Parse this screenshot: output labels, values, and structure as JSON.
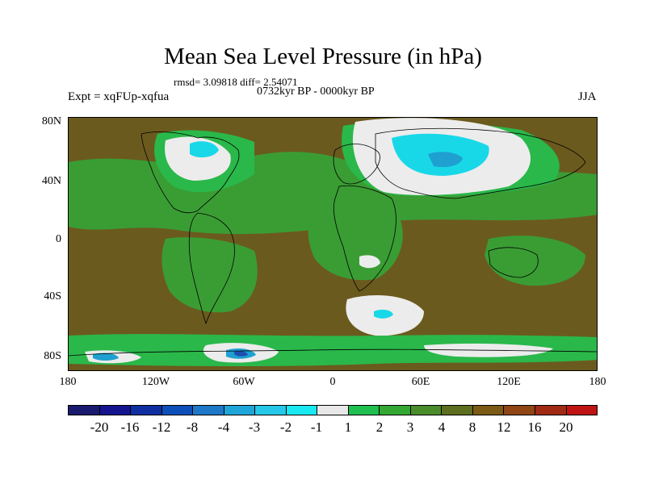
{
  "title": "Mean Sea Level Pressure (in hPa)",
  "stats_line": "rmsd= 3.09818 diff= 2.54071",
  "period": "0732kyr BP - 0000kyr BP",
  "experiment": "Expt = xqFUp-xqfua",
  "season": "JJA",
  "axes": {
    "latitude_labels": [
      "80N",
      "40N",
      "0",
      "40S",
      "80S"
    ],
    "longitude_labels": [
      "180",
      "120W",
      "60W",
      "0",
      "60E",
      "120E",
      "180"
    ]
  },
  "colorbar": {
    "levels": [
      "-20",
      "-16",
      "-12",
      "-8",
      "-4",
      "-3",
      "-2",
      "-1",
      "1",
      "2",
      "3",
      "4",
      "8",
      "12",
      "16",
      "20"
    ],
    "colors": [
      "#1a1a6e",
      "#14148f",
      "#0f2fa0",
      "#0d4fb8",
      "#1e78c8",
      "#1ea6d8",
      "#25c8e8",
      "#18e8f0",
      "#e8e8e8",
      "#1fbf4f",
      "#33a833",
      "#4b8c2a",
      "#5d6e1e",
      "#7a5a14",
      "#8f4514",
      "#a02a14",
      "#c01414"
    ]
  },
  "map_palette": {
    "brown": "#6b5a1e",
    "olive": "#4b7a24",
    "green": "#3a9d34",
    "light_green": "#2ab84a",
    "white": "#ececec",
    "cyan": "#18d8e8",
    "blue": "#1fa0d0",
    "deep_blue": "#1e4fb0",
    "coast": "#000000"
  }
}
